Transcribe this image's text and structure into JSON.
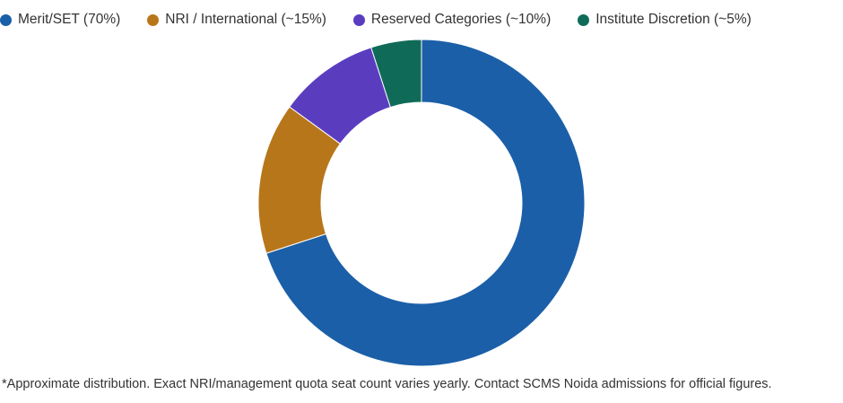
{
  "chart_data": {
    "type": "pie",
    "variant": "donut",
    "categories": [
      "Merit/SET (70%)",
      "NRI / International (~15%)",
      "Reserved Categories (~10%)",
      "Institute Discretion (~5%)"
    ],
    "values": [
      70,
      15,
      10,
      5
    ],
    "colors": [
      "#1b5fa8",
      "#b8761a",
      "#5a3dbf",
      "#0f6b58"
    ],
    "legend_position": "top-left",
    "title": ""
  },
  "footnote": "*Approximate distribution. Exact NRI/management quota seat count varies yearly. Contact SCMS Noida admissions for official figures."
}
